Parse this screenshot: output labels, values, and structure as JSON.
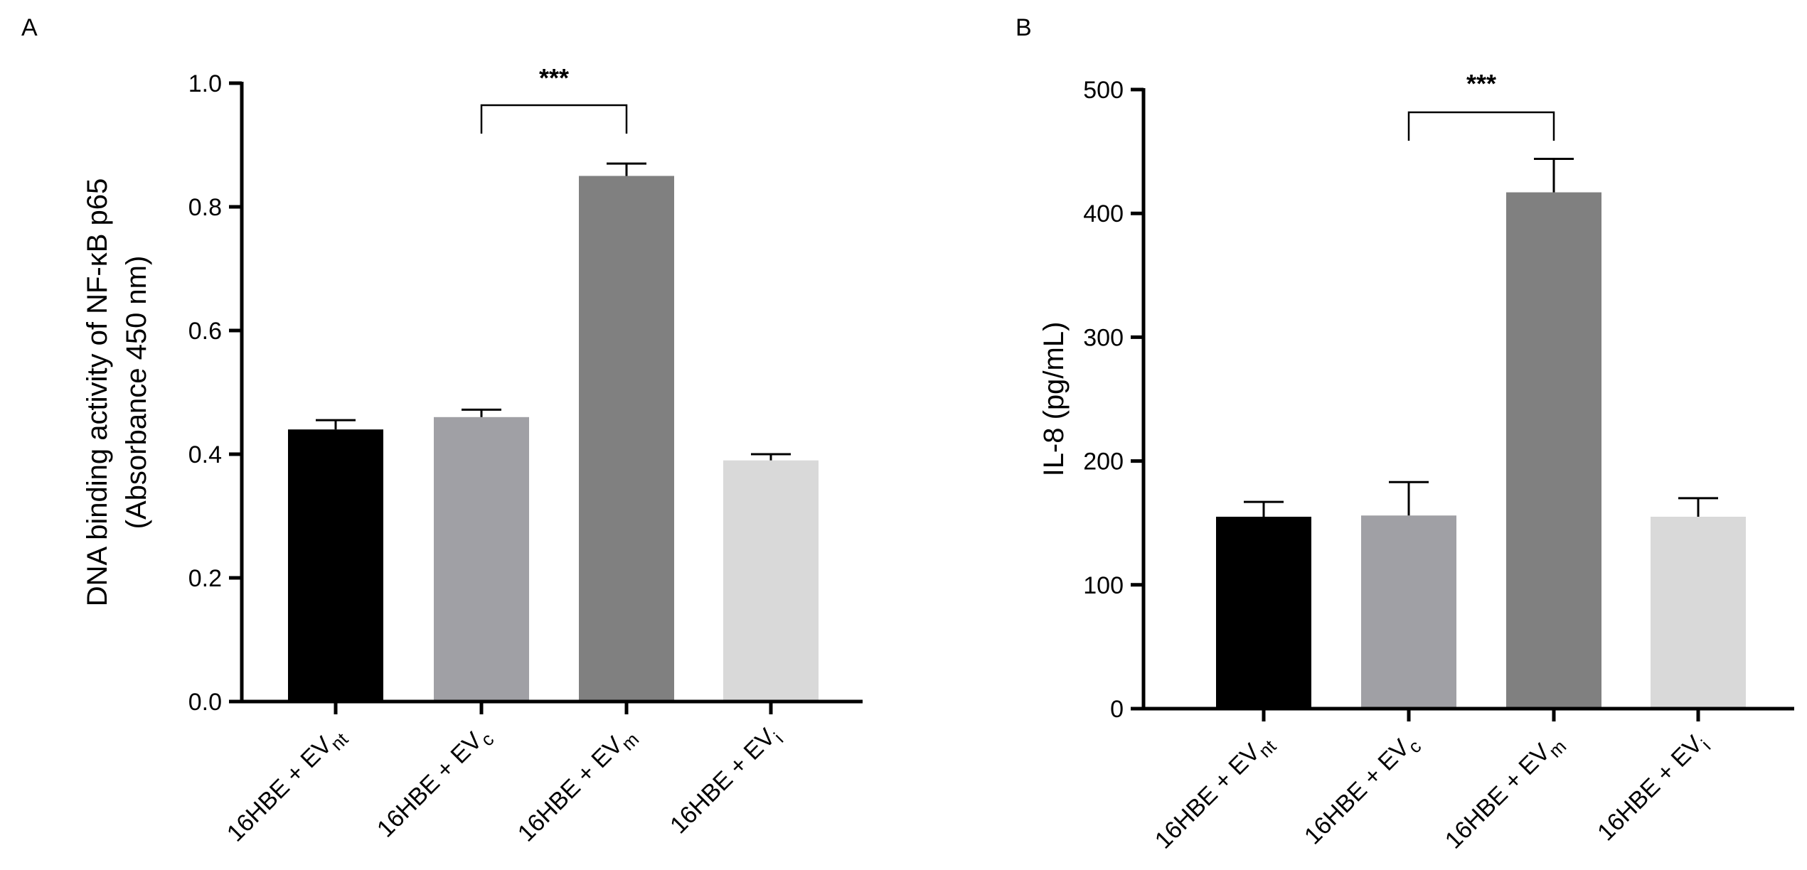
{
  "panels": [
    {
      "panel_label": "A",
      "chart_data": {
        "type": "bar",
        "title": "",
        "ylabel_line1": "DNA binding activity of NF-κB p65",
        "ylabel_line2": "(Absorbance 450 nm)",
        "xlabel": "",
        "ylim": [
          0,
          1.0
        ],
        "yticks": [
          0,
          0.2,
          0.4,
          0.6,
          0.8,
          1.0
        ],
        "ytick_labels": [
          "0.0",
          "0.2",
          "0.4",
          "0.6",
          "0.8",
          "1.0"
        ],
        "categories": [
          {
            "base": "16HBE + EV",
            "sub": "nt"
          },
          {
            "base": "16HBE + EV",
            "sub": "c"
          },
          {
            "base": "16HBE +  EV",
            "sub": "m"
          },
          {
            "base": "16HBE + EV",
            "sub": "i"
          }
        ],
        "values": [
          0.44,
          0.46,
          0.85,
          0.39
        ],
        "errors": [
          0.015,
          0.012,
          0.02,
          0.01
        ],
        "bar_colors": [
          "#000000",
          "#a0a0a5",
          "#808080",
          "#d9d9d9"
        ],
        "significance": {
          "from": 1,
          "to": 2,
          "label": "***"
        }
      }
    },
    {
      "panel_label": "B",
      "chart_data": {
        "type": "bar",
        "title": "",
        "ylabel_line1": "IL-8 (pg/mL)",
        "ylabel_line2": "",
        "xlabel": "",
        "ylim": [
          0,
          500
        ],
        "yticks": [
          0,
          100,
          200,
          300,
          400,
          500
        ],
        "ytick_labels": [
          "0",
          "100",
          "200",
          "300",
          "400",
          "500"
        ],
        "categories": [
          {
            "base": "16HBE + EV",
            "sub": "nt"
          },
          {
            "base": "16HBE + EV",
            "sub": "c"
          },
          {
            "base": "16HBE +  EV",
            "sub": "m"
          },
          {
            "base": "16HBE + EV",
            "sub": "i"
          }
        ],
        "values": [
          155,
          156,
          417,
          155
        ],
        "errors": [
          12,
          27,
          27,
          15
        ],
        "bar_colors": [
          "#000000",
          "#a0a0a5",
          "#808080",
          "#d9d9d9"
        ],
        "significance": {
          "from": 1,
          "to": 2,
          "label": "***"
        }
      }
    }
  ]
}
